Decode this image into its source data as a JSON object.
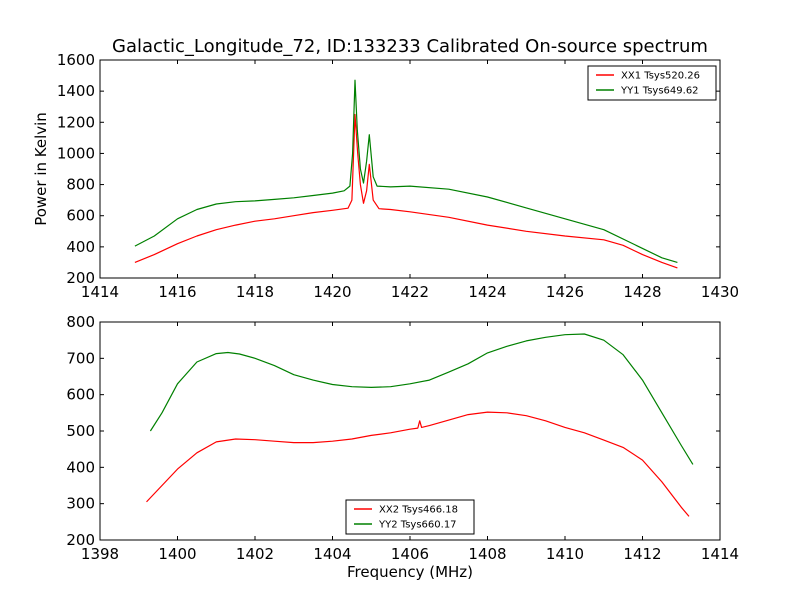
{
  "chart_data": [
    {
      "type": "line",
      "title": "Galactic_Longitude_72, ID:133233 Calibrated On-source spectrum",
      "xlabel": "",
      "ylabel": "Power in Kelvin",
      "xlim": [
        1414,
        1430
      ],
      "ylim": [
        200,
        1600
      ],
      "xticks": [
        1414,
        1416,
        1418,
        1420,
        1422,
        1424,
        1426,
        1428,
        1430
      ],
      "yticks": [
        200,
        400,
        600,
        800,
        1000,
        1200,
        1400,
        1600
      ],
      "grid": false,
      "legend": "top-right",
      "series": [
        {
          "name": "XX1 Tsys520.26",
          "color": "#ff0000",
          "points": [
            [
              1414.9,
              300
            ],
            [
              1415.4,
              350
            ],
            [
              1416,
              420
            ],
            [
              1416.5,
              470
            ],
            [
              1417,
              510
            ],
            [
              1417.5,
              540
            ],
            [
              1418,
              565
            ],
            [
              1418.5,
              580
            ],
            [
              1419,
              600
            ],
            [
              1419.5,
              620
            ],
            [
              1420,
              635
            ],
            [
              1420.4,
              648
            ],
            [
              1420.5,
              700
            ],
            [
              1420.58,
              1250
            ],
            [
              1420.65,
              1000
            ],
            [
              1420.72,
              800
            ],
            [
              1420.8,
              680
            ],
            [
              1420.88,
              760
            ],
            [
              1420.95,
              930
            ],
            [
              1421.05,
              700
            ],
            [
              1421.2,
              645
            ],
            [
              1421.5,
              640
            ],
            [
              1422,
              625
            ],
            [
              1423,
              590
            ],
            [
              1424,
              540
            ],
            [
              1425,
              500
            ],
            [
              1426,
              470
            ],
            [
              1427,
              445
            ],
            [
              1427.5,
              410
            ],
            [
              1428,
              350
            ],
            [
              1428.5,
              300
            ],
            [
              1428.9,
              265
            ]
          ]
        },
        {
          "name": "YY1 Tsys649.62",
          "color": "#008000",
          "points": [
            [
              1414.9,
              405
            ],
            [
              1415.4,
              470
            ],
            [
              1416,
              580
            ],
            [
              1416.5,
              640
            ],
            [
              1417,
              675
            ],
            [
              1417.5,
              690
            ],
            [
              1418,
              695
            ],
            [
              1418.5,
              705
            ],
            [
              1419,
              715
            ],
            [
              1419.5,
              730
            ],
            [
              1420,
              745
            ],
            [
              1420.3,
              760
            ],
            [
              1420.45,
              790
            ],
            [
              1420.52,
              1000
            ],
            [
              1420.58,
              1470
            ],
            [
              1420.64,
              1150
            ],
            [
              1420.72,
              900
            ],
            [
              1420.8,
              810
            ],
            [
              1420.88,
              950
            ],
            [
              1420.95,
              1120
            ],
            [
              1421.05,
              850
            ],
            [
              1421.15,
              790
            ],
            [
              1421.5,
              785
            ],
            [
              1422,
              790
            ],
            [
              1423,
              770
            ],
            [
              1424,
              720
            ],
            [
              1425,
              650
            ],
            [
              1426,
              580
            ],
            [
              1427,
              510
            ],
            [
              1428,
              390
            ],
            [
              1428.5,
              330
            ],
            [
              1428.9,
              300
            ]
          ]
        }
      ]
    },
    {
      "type": "line",
      "title": "",
      "xlabel": "Frequency (MHz)",
      "ylabel": "",
      "xlim": [
        1398,
        1414
      ],
      "ylim": [
        200,
        800
      ],
      "xticks": [
        1398,
        1400,
        1402,
        1404,
        1406,
        1408,
        1410,
        1412,
        1414
      ],
      "yticks": [
        200,
        300,
        400,
        500,
        600,
        700,
        800
      ],
      "grid": false,
      "legend": "bottom-center",
      "series": [
        {
          "name": "XX2 Tsys466.18",
          "color": "#ff0000",
          "points": [
            [
              1399.2,
              305
            ],
            [
              1399.6,
              350
            ],
            [
              1400,
              395
            ],
            [
              1400.5,
              440
            ],
            [
              1401,
              470
            ],
            [
              1401.5,
              478
            ],
            [
              1402,
              476
            ],
            [
              1402.5,
              472
            ],
            [
              1403,
              468
            ],
            [
              1403.5,
              468
            ],
            [
              1404,
              472
            ],
            [
              1404.5,
              478
            ],
            [
              1405,
              488
            ],
            [
              1405.5,
              495
            ],
            [
              1406,
              505
            ],
            [
              1406.2,
              508
            ],
            [
              1406.25,
              528
            ],
            [
              1406.3,
              510
            ],
            [
              1406.5,
              515
            ],
            [
              1407,
              530
            ],
            [
              1407.5,
              545
            ],
            [
              1408,
              552
            ],
            [
              1408.5,
              550
            ],
            [
              1409,
              542
            ],
            [
              1409.5,
              528
            ],
            [
              1410,
              510
            ],
            [
              1410.5,
              495
            ],
            [
              1411,
              475
            ],
            [
              1411.5,
              455
            ],
            [
              1412,
              420
            ],
            [
              1412.5,
              360
            ],
            [
              1413,
              290
            ],
            [
              1413.2,
              265
            ]
          ]
        },
        {
          "name": "YY2 Tsys660.17",
          "color": "#008000",
          "points": [
            [
              1399.3,
              500
            ],
            [
              1399.6,
              550
            ],
            [
              1400,
              630
            ],
            [
              1400.5,
              690
            ],
            [
              1401,
              713
            ],
            [
              1401.3,
              716
            ],
            [
              1401.6,
              712
            ],
            [
              1402,
              700
            ],
            [
              1402.5,
              680
            ],
            [
              1403,
              655
            ],
            [
              1403.5,
              640
            ],
            [
              1404,
              628
            ],
            [
              1404.5,
              622
            ],
            [
              1405,
              620
            ],
            [
              1405.5,
              622
            ],
            [
              1406,
              630
            ],
            [
              1406.5,
              640
            ],
            [
              1407,
              662
            ],
            [
              1407.5,
              685
            ],
            [
              1408,
              715
            ],
            [
              1408.5,
              733
            ],
            [
              1409,
              748
            ],
            [
              1409.5,
              758
            ],
            [
              1410,
              765
            ],
            [
              1410.5,
              767
            ],
            [
              1411,
              750
            ],
            [
              1411.5,
              710
            ],
            [
              1412,
              640
            ],
            [
              1412.5,
              550
            ],
            [
              1413,
              460
            ],
            [
              1413.3,
              408
            ]
          ]
        }
      ]
    }
  ]
}
